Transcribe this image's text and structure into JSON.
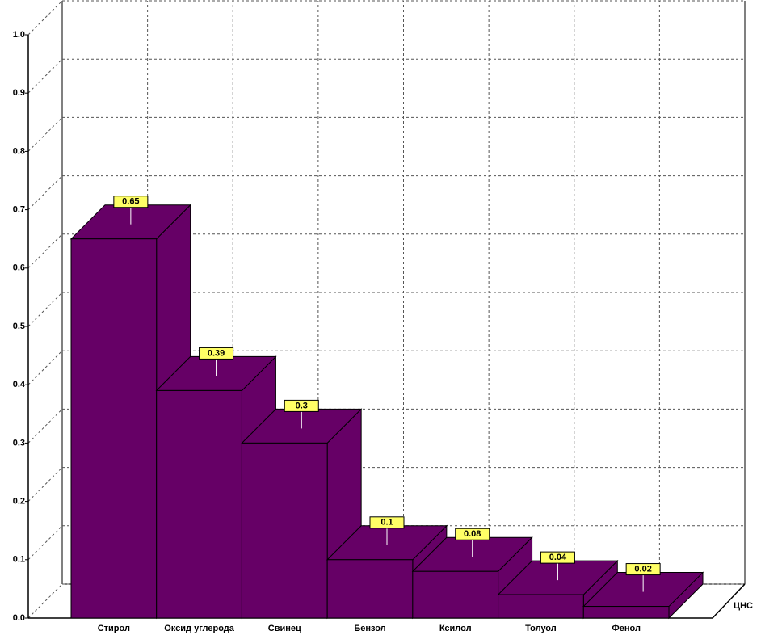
{
  "chart_data": {
    "type": "bar",
    "categories": [
      "Стирол",
      "Оксид углерода",
      "Свинец",
      "Бензол",
      "Ксилол",
      "Толуол",
      "Фенол"
    ],
    "series": [
      {
        "name": "ЦНС",
        "color": "#660066",
        "values": [
          0.65,
          0.39,
          0.3,
          0.1,
          0.08,
          0.04,
          0.02
        ]
      }
    ],
    "ylim": [
      0,
      1
    ],
    "yticks": [
      {
        "value": 0,
        "label": "0.0"
      },
      0.1,
      0.2,
      0.3,
      0.4,
      0.5,
      0.6,
      0.7,
      0.8,
      0.9,
      {
        "value": 1,
        "label": "1.0"
      }
    ],
    "grid": true
  }
}
